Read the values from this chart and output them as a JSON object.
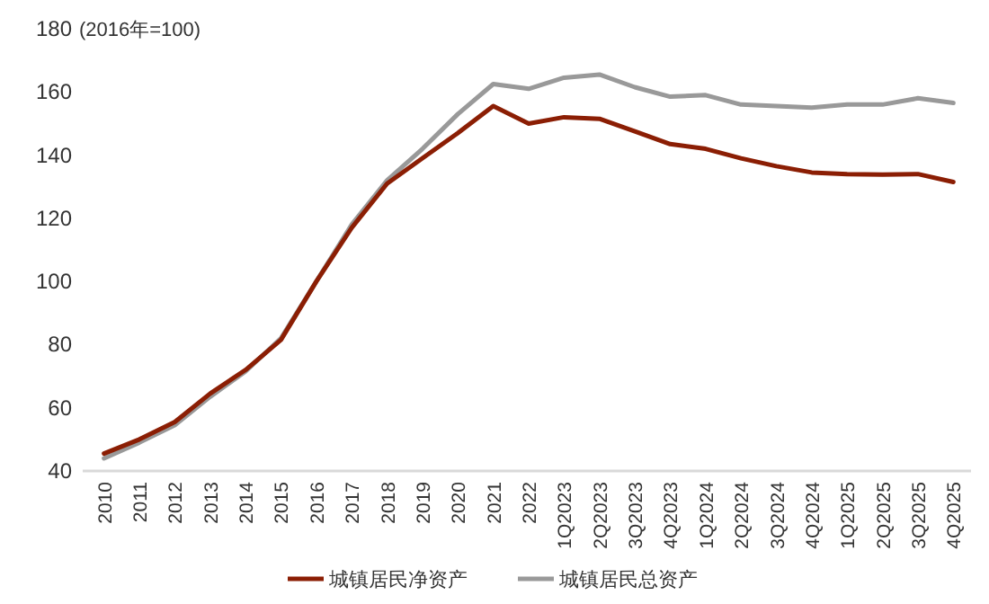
{
  "chart_data": {
    "type": "line",
    "ylabel": "(2016年=100)",
    "categories": [
      "2010",
      "2011",
      "2012",
      "2013",
      "2014",
      "2015",
      "2016",
      "2017",
      "2018",
      "2019",
      "2020",
      "2021",
      "2022",
      "1Q2023",
      "2Q2023",
      "3Q2023",
      "4Q2023",
      "1Q2024",
      "2Q2024",
      "3Q2024",
      "4Q2024",
      "1Q2025",
      "2Q2025",
      "3Q2025",
      "4Q2025"
    ],
    "series": [
      {
        "name": "城镇居民净资产",
        "color": "#8b1e04",
        "values": [
          45.5,
          50,
          55.5,
          64.5,
          72,
          81.5,
          100,
          117,
          131,
          139,
          147,
          155.5,
          150,
          152,
          151.5,
          147.5,
          143.5,
          142,
          139,
          136.5,
          134.5,
          134,
          133.8,
          134,
          131.5
        ]
      },
      {
        "name": "城镇居民总资产",
        "color": "#999999",
        "values": [
          44,
          49,
          54.5,
          63.5,
          71.5,
          82,
          100,
          118,
          132,
          142,
          153,
          162.5,
          161,
          164.5,
          165.5,
          161.5,
          158.5,
          159,
          156,
          155.5,
          155,
          156,
          156,
          158,
          156.5
        ]
      }
    ],
    "ylim": [
      40,
      180
    ],
    "yticks": [
      40,
      60,
      80,
      100,
      120,
      140,
      160,
      180
    ],
    "grid": false,
    "legend": "bottom",
    "marker": "none",
    "line_style": "solid"
  }
}
